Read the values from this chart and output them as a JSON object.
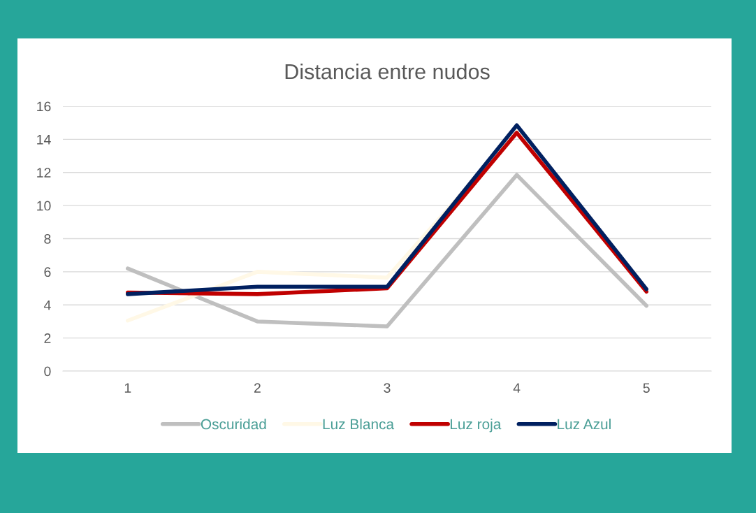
{
  "chart_data": {
    "type": "line",
    "title": "Distancia entre nudos",
    "categories": [
      "1",
      "2",
      "3",
      "4",
      "5"
    ],
    "series": [
      {
        "name": "Oscuridad",
        "color": "#bfbfbf",
        "values": [
          6.2,
          3.0,
          2.7,
          11.85,
          3.95
        ]
      },
      {
        "name": "Luz Blanca",
        "color": "#fff8e6",
        "values": [
          3.05,
          6.0,
          5.65,
          14.5,
          4.9
        ]
      },
      {
        "name": "Luz roja",
        "color": "#c00000",
        "values": [
          4.75,
          4.65,
          5.0,
          14.4,
          4.8
        ]
      },
      {
        "name": "Luz Azul",
        "color": "#002060",
        "values": [
          4.65,
          5.1,
          5.1,
          14.85,
          4.95
        ]
      }
    ],
    "ylim": [
      0,
      16
    ],
    "yticks": [
      0,
      2,
      4,
      6,
      8,
      10,
      12,
      14,
      16
    ],
    "grid": "y",
    "legend": "bottom",
    "marker": "none",
    "line_style": "solid"
  }
}
